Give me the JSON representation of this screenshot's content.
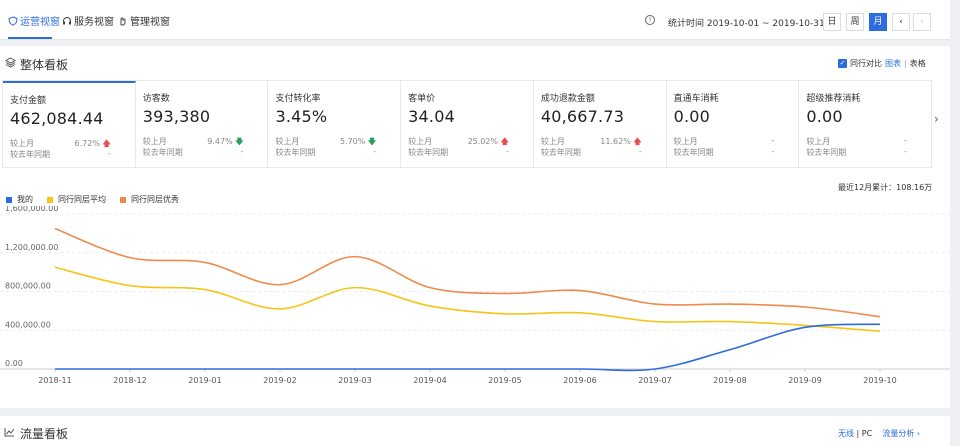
{
  "tabs": [
    {
      "label": "运营视窗",
      "icon": "shield-icon",
      "active": true
    },
    {
      "label": "服务视窗",
      "icon": "headset-icon",
      "active": false
    },
    {
      "label": "管理视窗",
      "icon": "hand-icon",
      "active": false
    }
  ],
  "header": {
    "period_label": "统计时间 2019-10-01 ~ 2019-10-31",
    "range_buttons": [
      "日",
      "周",
      "月"
    ],
    "active_range": "月",
    "prev": "‹",
    "next": "›",
    "info": "!"
  },
  "overview": {
    "title": "整体看板",
    "compare_label": "同行对比",
    "chart_link": "图表",
    "table_link": "表格",
    "divider": "|",
    "metrics": [
      {
        "name": "支付金额",
        "value": "462,084.44",
        "mom_label": "较上月",
        "mom": "6.72%",
        "mom_dir": "up",
        "yoy_label": "较去年同期",
        "yoy": "-"
      },
      {
        "name": "访客数",
        "value": "393,380",
        "mom_label": "较上月",
        "mom": "9.47%",
        "mom_dir": "down",
        "yoy_label": "较去年同期",
        "yoy": "-"
      },
      {
        "name": "支付转化率",
        "value": "3.45%",
        "mom_label": "较上月",
        "mom": "5.70%",
        "mom_dir": "down",
        "yoy_label": "较去年同期",
        "yoy": "-"
      },
      {
        "name": "客单价",
        "value": "34.04",
        "mom_label": "较上月",
        "mom": "25.02%",
        "mom_dir": "up",
        "yoy_label": "较去年同期",
        "yoy": "-"
      },
      {
        "name": "成功退款金额",
        "value": "40,667.73",
        "mom_label": "较上月",
        "mom": "11.62%",
        "mom_dir": "up",
        "yoy_label": "较去年同期",
        "yoy": "-"
      },
      {
        "name": "直通车消耗",
        "value": "0.00",
        "mom_label": "较上月",
        "mom": "-",
        "mom_dir": "",
        "yoy_label": "较去年同期",
        "yoy": "-"
      },
      {
        "name": "超级推荐消耗",
        "value": "0.00",
        "mom_label": "较上月",
        "mom": "-",
        "mom_dir": "",
        "yoy_label": "较去年同期",
        "yoy": "-"
      }
    ],
    "more_arrow": "›",
    "total_label": "最近12月累计：108.16万"
  },
  "chart_data": {
    "type": "line",
    "categories": [
      "2018-11",
      "2018-12",
      "2019-01",
      "2019-02",
      "2019-03",
      "2019-04",
      "2019-05",
      "2019-06",
      "2019-07",
      "2019-08",
      "2019-09",
      "2019-10"
    ],
    "series": [
      {
        "name": "我的",
        "color": "#2d6cdf",
        "values": [
          0,
          0,
          0,
          0,
          0,
          0,
          0,
          0,
          0,
          200000,
          430000,
          462000
        ]
      },
      {
        "name": "同行同层平均",
        "color": "#f5c518",
        "values": [
          1050000,
          860000,
          820000,
          620000,
          840000,
          650000,
          570000,
          580000,
          490000,
          490000,
          450000,
          390000
        ]
      },
      {
        "name": "同行同层优秀",
        "color": "#f08a4b",
        "values": [
          1450000,
          1150000,
          1100000,
          870000,
          1160000,
          840000,
          780000,
          810000,
          670000,
          670000,
          640000,
          540000
        ]
      }
    ],
    "y_ticks": [
      "0.00",
      "400,000.00",
      "800,000.00",
      "1,200,000.00",
      "1,600,000.00"
    ],
    "ylim": [
      0,
      1600000
    ]
  },
  "traffic": {
    "title": "流量看板",
    "wireless": "无线",
    "pc": "PC",
    "divider": "|",
    "analysis_link": "流量分析 ›"
  },
  "colors": {
    "accent": "#2d6cdf",
    "up": "#e84d4d",
    "down": "#22a35a"
  }
}
